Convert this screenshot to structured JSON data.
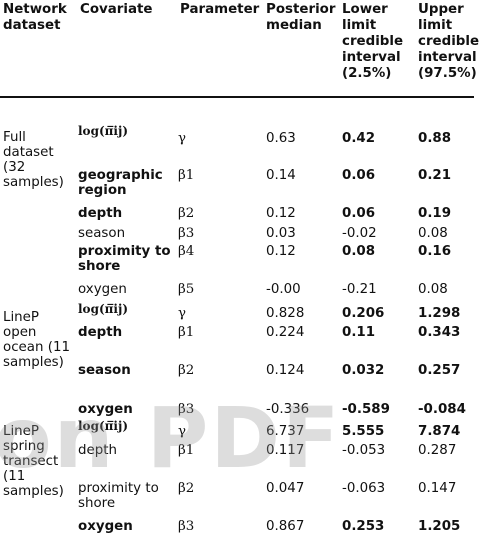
{
  "headers": [
    {
      "id": "dataset",
      "text": "Network dataset"
    },
    {
      "id": "covariate",
      "text": "Covariate"
    },
    {
      "id": "parameter",
      "text": "Parameter"
    },
    {
      "id": "median",
      "text": "Posterior median"
    },
    {
      "id": "lower",
      "text": "Lower limit credible interval (2.5%)"
    },
    {
      "id": "upper",
      "text": "Upper limit credible interval (97.5%)"
    }
  ],
  "groups": [
    {
      "dataset": "Full dataset (32 samples)"
    },
    {
      "dataset": "LineP open ocean (11 samples)"
    },
    {
      "dataset": "LineP spring transect (11 samples)"
    }
  ],
  "rows": [
    {
      "covariate": "log(π̅ij)",
      "param": "γ",
      "median": "0.63",
      "lower": "0.42",
      "upper": "0.88"
    },
    {
      "covariate": "geographic region",
      "param": "β1",
      "median": "0.14",
      "lower": "0.06",
      "upper": "0.21"
    },
    {
      "covariate": "depth",
      "param": "β2",
      "median": "0.12",
      "lower": "0.06",
      "upper": "0.19"
    },
    {
      "covariate": "season",
      "param": "β3",
      "median": "0.03",
      "lower": "-0.02",
      "upper": "0.08"
    },
    {
      "covariate": "proximity to shore",
      "param": "β4",
      "median": "0.12",
      "lower": "0.08",
      "upper": "0.16"
    },
    {
      "covariate": "oxygen",
      "param": "β5",
      "median": "-0.00",
      "lower": "-0.21",
      "upper": "0.08"
    },
    {
      "covariate": "log(π̅ij)",
      "param": "γ",
      "median": "0.828",
      "lower": "0.206",
      "upper": "1.298"
    },
    {
      "covariate": "depth",
      "param": "β1",
      "median": "0.224",
      "lower": "0.11",
      "upper": "0.343"
    },
    {
      "covariate": "season",
      "param": "β2",
      "median": "0.124",
      "lower": "0.032",
      "upper": "0.257"
    },
    {
      "covariate": "oxygen",
      "param": "β3",
      "median": "-0.336",
      "lower": "-0.589",
      "upper": "-0.084"
    },
    {
      "covariate": "log(π̅ij)",
      "param": "γ",
      "median": "6.737",
      "lower": "5.555",
      "upper": "7.874"
    },
    {
      "covariate": "depth",
      "param": "β1",
      "median": "0.117",
      "lower": "-0.053",
      "upper": "0.287"
    },
    {
      "covariate": "proximity to shore",
      "param": "β2",
      "median": "0.047",
      "lower": "-0.063",
      "upper": "0.147"
    },
    {
      "covariate": "oxygen",
      "param": "β3",
      "median": "0.867",
      "lower": "0.253",
      "upper": "1.205"
    }
  ],
  "watermark": "on PDF"
}
